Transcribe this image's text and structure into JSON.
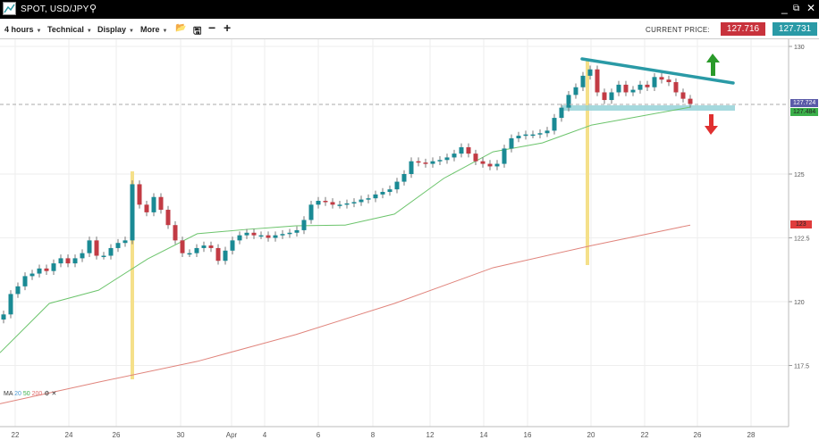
{
  "window": {
    "title": "SPOT, USD/JPY",
    "icons": [
      "chart-logo-icon",
      "search-icon",
      "minimize-icon",
      "popout-icon",
      "close-icon"
    ]
  },
  "toolbar": {
    "timeframe": "4 hours",
    "technical": "Technical",
    "display": "Display",
    "more": "More",
    "icons": [
      "open-folder-icon",
      "save-icon",
      "zoom-out-icon",
      "zoom-in-icon"
    ]
  },
  "price": {
    "label": "CURRENT PRICE:",
    "bid": "127.716",
    "ask": "127.731",
    "bid_color": "#c8323c",
    "ask_color": "#2a9aa6"
  },
  "legend": {
    "label": "MA",
    "p1": "20",
    "p2": "50",
    "p3": "200"
  },
  "chart_data": {
    "type": "candlestick",
    "yticks": [
      "130",
      "125",
      "122.5",
      "120",
      "117.5"
    ],
    "ylim": [
      115.3,
      130.3
    ],
    "xticks": [
      "22",
      "24",
      "26",
      "30",
      "Apr",
      "4",
      "6",
      "8",
      "12",
      "14",
      "16",
      "20",
      "22",
      "26",
      "28"
    ],
    "closes": [
      119.5,
      120.3,
      120.6,
      121.0,
      121.1,
      121.3,
      121.2,
      121.5,
      121.7,
      121.5,
      121.7,
      121.9,
      122.4,
      121.8,
      121.8,
      122.1,
      122.3,
      122.4,
      124.6,
      123.8,
      123.5,
      124.1,
      123.6,
      123.0,
      122.4,
      121.9,
      121.9,
      122.1,
      122.2,
      122.1,
      121.6,
      122.0,
      122.4,
      122.6,
      122.7,
      122.6,
      122.6,
      122.5,
      122.6,
      122.65,
      122.7,
      122.8,
      123.2,
      123.8,
      123.95,
      123.9,
      123.8,
      123.8,
      123.85,
      123.9,
      124.0,
      124.05,
      124.2,
      124.3,
      124.4,
      124.7,
      125.0,
      125.5,
      125.45,
      125.4,
      125.5,
      125.55,
      125.65,
      125.8,
      126.05,
      125.8,
      125.5,
      125.4,
      125.3,
      125.4,
      126.0,
      126.4,
      126.5,
      126.55,
      126.55,
      126.6,
      126.7,
      127.2,
      127.6,
      128.1,
      128.4,
      128.85,
      129.1,
      128.2,
      127.9,
      128.2,
      128.5,
      128.2,
      128.3,
      128.5,
      128.4,
      128.8,
      128.7,
      128.6,
      128.2,
      127.95,
      127.75
    ],
    "ma50": [
      118.0,
      119.93,
      120.45,
      121.68,
      122.66,
      122.83,
      122.97,
      123.0,
      123.43,
      124.83,
      125.87,
      126.22,
      126.92,
      127.27,
      127.62
    ],
    "ma200": [
      116.0,
      116.85,
      117.66,
      118.71,
      119.93,
      121.33,
      122.2,
      123.0
    ],
    "price_labels": {
      "current": "127.724",
      "ma50": "127.484",
      "ma200": "123"
    },
    "colors": {
      "up": "#1a8a94",
      "down": "#c23b44",
      "ma50": "#6cc46c",
      "ma200": "#e0847c",
      "highlight": "#f5e08a",
      "trend": "#2a9aa6"
    }
  }
}
